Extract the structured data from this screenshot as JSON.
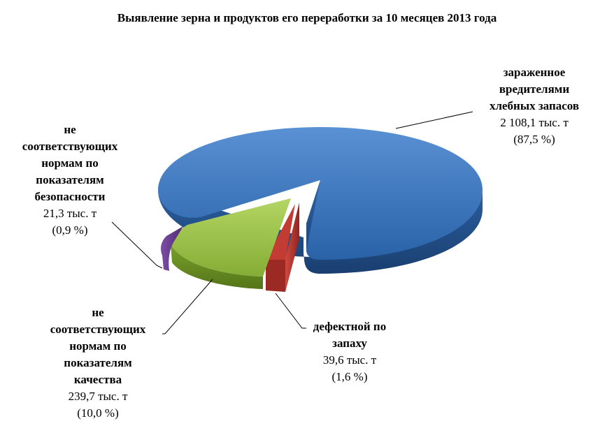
{
  "chart_data": {
    "type": "pie",
    "title": "Выявление зерна и продуктов  его переработки  за 10 месяцев 2013 года",
    "series": [
      {
        "name": "зараженное\nвредителями\nхлебных запасов",
        "value_label": "2 108,1 тыс. т",
        "pct_label": "(87,5 %)",
        "value": 2108.1,
        "percent": 87.5,
        "color": "#2e6cb4"
      },
      {
        "name": "дефектной по\nзапаху",
        "value_label": "39,6 тыс. т",
        "pct_label": "(1,6 %)",
        "value": 39.6,
        "percent": 1.6,
        "color": "#b8322c"
      },
      {
        "name": "не\nсоответствующих\nнормам по\nпоказателям\nкачества",
        "value_label": "239,7 тыс. т",
        "pct_label": "(10,0 %)",
        "value": 239.7,
        "percent": 10.0,
        "color": "#8db43c"
      },
      {
        "name": "не\nсоответствующих\nнормам по\nпоказателям\nбезопасности",
        "value_label": "21,3 тыс. т",
        "pct_label": "(0,9 %)",
        "value": 21.3,
        "percent": 0.9,
        "color": "#6a3d91"
      }
    ],
    "legend": "none",
    "style": "3d-exploded-pie"
  }
}
